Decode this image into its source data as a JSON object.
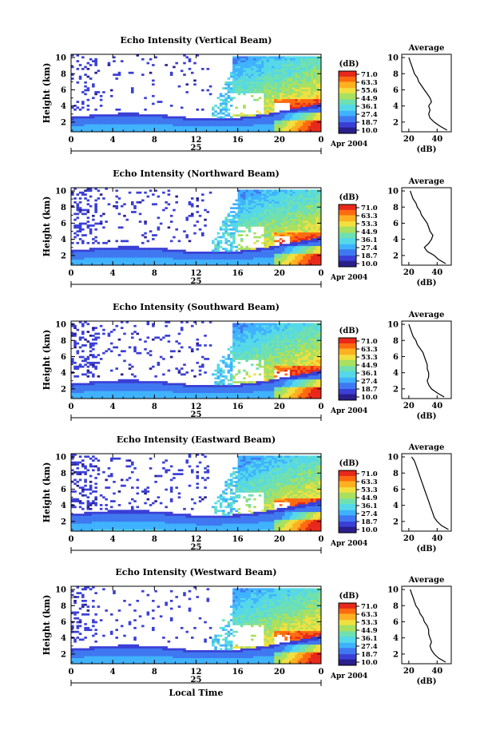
{
  "chart_data": [
    {
      "type": "heatmap",
      "title": "Echo Intensity (Vertical Beam)",
      "beam": "vertical",
      "ylabel": "Height (km)",
      "xlabel": "",
      "x_ticks": [
        "0",
        "4",
        "8",
        "12",
        "16",
        "20",
        "0"
      ],
      "y_ticks": [
        "2",
        "4",
        "6",
        "8",
        "10"
      ],
      "date_label": "25",
      "month_label": "Apr 2004",
      "xlim": [
        0,
        24
      ],
      "ylim": [
        0.8,
        10.4
      ],
      "colorbar": {
        "title": "(dB)",
        "ticks": [
          "71.0",
          "63.3",
          "55.6",
          "44.9",
          "36.1",
          "27.4",
          "18.7",
          "10.0"
        ],
        "range": [
          10.0,
          71.0
        ]
      },
      "profile": {
        "title": "Average",
        "xlabel": "(dB)",
        "x_ticks": [
          "20",
          "40"
        ],
        "y_ticks": [
          "2",
          "4",
          "6",
          "8",
          "10"
        ],
        "xlim": [
          15,
          50
        ],
        "ylim": [
          0.8,
          10.4
        ],
        "heights": [
          1.0,
          1.5,
          2.0,
          2.5,
          3.0,
          3.5,
          4.0,
          4.5,
          5.0,
          5.5,
          6.0,
          6.5,
          7.0,
          7.5,
          8.0,
          8.5,
          9.0,
          9.5,
          10.0
        ],
        "values": [
          47,
          42,
          38,
          35,
          34,
          35,
          34,
          36,
          35,
          33,
          31,
          29,
          27,
          26,
          24,
          23,
          22,
          21,
          20
        ]
      }
    },
    {
      "type": "heatmap",
      "title": "Echo Intensity (Northward Beam)",
      "beam": "northward",
      "ylabel": "Height (km)",
      "xlabel": "",
      "x_ticks": [
        "0",
        "4",
        "8",
        "12",
        "16",
        "20",
        "0"
      ],
      "y_ticks": [
        "2",
        "4",
        "6",
        "8",
        "10"
      ],
      "date_label": "25",
      "month_label": "Apr 2004",
      "xlim": [
        0,
        24
      ],
      "ylim": [
        0.8,
        10.4
      ],
      "colorbar": {
        "title": "(dB)",
        "ticks": [
          "71.0",
          "63.3",
          "53.3",
          "44.9",
          "36.1",
          "27.4",
          "18.7",
          "10.0"
        ],
        "range": [
          10.0,
          71.0
        ]
      },
      "profile": {
        "title": "Average",
        "xlabel": "(dB)",
        "x_ticks": [
          "20",
          "40"
        ],
        "y_ticks": [
          "2",
          "4",
          "6",
          "8",
          "10"
        ],
        "xlim": [
          15,
          50
        ],
        "ylim": [
          0.8,
          10.4
        ],
        "heights": [
          1.0,
          1.5,
          2.0,
          2.5,
          3.0,
          3.5,
          4.0,
          4.5,
          5.0,
          5.5,
          6.0,
          6.5,
          7.0,
          7.5,
          8.0,
          8.5,
          9.0,
          9.5,
          10.0
        ],
        "values": [
          46,
          41,
          38,
          33,
          31,
          34,
          36,
          37,
          35,
          34,
          33,
          31,
          29,
          28,
          26,
          25,
          23,
          22,
          21
        ]
      }
    },
    {
      "type": "heatmap",
      "title": "Echo Intensity (Southward Beam)",
      "beam": "southward",
      "ylabel": "Height (km)",
      "xlabel": "",
      "x_ticks": [
        "0",
        "4",
        "8",
        "12",
        "16",
        "20",
        "0"
      ],
      "y_ticks": [
        "2",
        "4",
        "6",
        "8",
        "10"
      ],
      "date_label": "25",
      "month_label": "Apr 2004",
      "xlim": [
        0,
        24
      ],
      "ylim": [
        0.8,
        10.4
      ],
      "colorbar": {
        "title": "(dB)",
        "ticks": [
          "71.0",
          "63.3",
          "53.3",
          "44.9",
          "36.1",
          "27.4",
          "18.7",
          "10.0"
        ],
        "range": [
          10.0,
          71.0
        ]
      },
      "profile": {
        "title": "Average",
        "xlabel": "(dB)",
        "x_ticks": [
          "20",
          "40"
        ],
        "y_ticks": [
          "2",
          "4",
          "6",
          "8",
          "10"
        ],
        "xlim": [
          15,
          50
        ],
        "ylim": [
          0.8,
          10.4
        ],
        "heights": [
          1.0,
          1.5,
          2.0,
          2.5,
          3.0,
          3.5,
          4.0,
          4.5,
          5.0,
          5.5,
          6.0,
          6.5,
          7.0,
          7.5,
          8.0,
          8.5,
          9.0,
          9.5,
          10.0
        ],
        "values": [
          45,
          40,
          36,
          34,
          33,
          34,
          34,
          33,
          33,
          32,
          31,
          30,
          28,
          26,
          25,
          23,
          22,
          21,
          20
        ]
      }
    },
    {
      "type": "heatmap",
      "title": "Echo Intensity (Eastward Beam)",
      "beam": "eastward",
      "ylabel": "Height (km)",
      "xlabel": "",
      "x_ticks": [
        "0",
        "4",
        "8",
        "12",
        "16",
        "20",
        "0"
      ],
      "y_ticks": [
        "2",
        "4",
        "6",
        "8",
        "10"
      ],
      "date_label": "25",
      "month_label": "Apr 2004",
      "xlim": [
        0,
        24
      ],
      "ylim": [
        0.8,
        10.4
      ],
      "colorbar": {
        "title": "(dB)",
        "ticks": [
          "71.0",
          "63.3",
          "53.3",
          "44.9",
          "36.1",
          "27.4",
          "18.7",
          "10.0"
        ],
        "range": [
          10.0,
          71.0
        ]
      },
      "profile": {
        "title": "Average",
        "xlabel": "(dB)",
        "x_ticks": [
          "20",
          "40"
        ],
        "y_ticks": [
          "2",
          "4",
          "6",
          "8",
          "10"
        ],
        "xlim": [
          15,
          50
        ],
        "ylim": [
          0.8,
          10.4
        ],
        "heights": [
          1.0,
          1.5,
          2.0,
          2.5,
          3.0,
          3.5,
          4.0,
          4.5,
          5.0,
          5.5,
          6.0,
          6.5,
          7.0,
          7.5,
          8.0,
          8.5,
          9.0,
          9.5,
          10.0
        ],
        "values": [
          48,
          43,
          40,
          38,
          37,
          36,
          35,
          34,
          33,
          32,
          31,
          30,
          29,
          28,
          27,
          26,
          25,
          24,
          22
        ]
      }
    },
    {
      "type": "heatmap",
      "title": "Echo Intensity (Westward Beam)",
      "beam": "westward",
      "ylabel": "Height (km)",
      "xlabel": "Local Time",
      "x_ticks": [
        "0",
        "4",
        "8",
        "12",
        "16",
        "20",
        "0"
      ],
      "y_ticks": [
        "2",
        "4",
        "6",
        "8",
        "10"
      ],
      "date_label": "25",
      "month_label": "Apr 2004",
      "xlim": [
        0,
        24
      ],
      "ylim": [
        0.8,
        10.4
      ],
      "colorbar": {
        "title": "(dB)",
        "ticks": [
          "71.0",
          "63.3",
          "53.3",
          "44.9",
          "36.1",
          "27.4",
          "18.7",
          "10.0"
        ],
        "range": [
          10.0,
          71.0
        ]
      },
      "profile": {
        "title": "Average",
        "xlabel": "(dB)",
        "x_ticks": [
          "20",
          "40"
        ],
        "y_ticks": [
          "2",
          "4",
          "6",
          "8",
          "10"
        ],
        "xlim": [
          15,
          50
        ],
        "ylim": [
          0.8,
          10.4
        ],
        "heights": [
          1.0,
          1.5,
          2.0,
          2.5,
          3.0,
          3.5,
          4.0,
          4.5,
          5.0,
          5.5,
          6.0,
          6.5,
          7.0,
          7.5,
          8.0,
          8.5,
          9.0,
          9.5,
          10.0
        ],
        "values": [
          46,
          41,
          38,
          36,
          35,
          36,
          35,
          34,
          34,
          33,
          31,
          30,
          28,
          27,
          25,
          24,
          23,
          22,
          21
        ]
      }
    }
  ],
  "colormap": [
    "#2a1f8c",
    "#3a3fd6",
    "#3f78f0",
    "#3fb2ff",
    "#55d8e8",
    "#6fe0b0",
    "#a8e060",
    "#f0e040",
    "#ffb020",
    "#ff6a10",
    "#e8281a"
  ]
}
